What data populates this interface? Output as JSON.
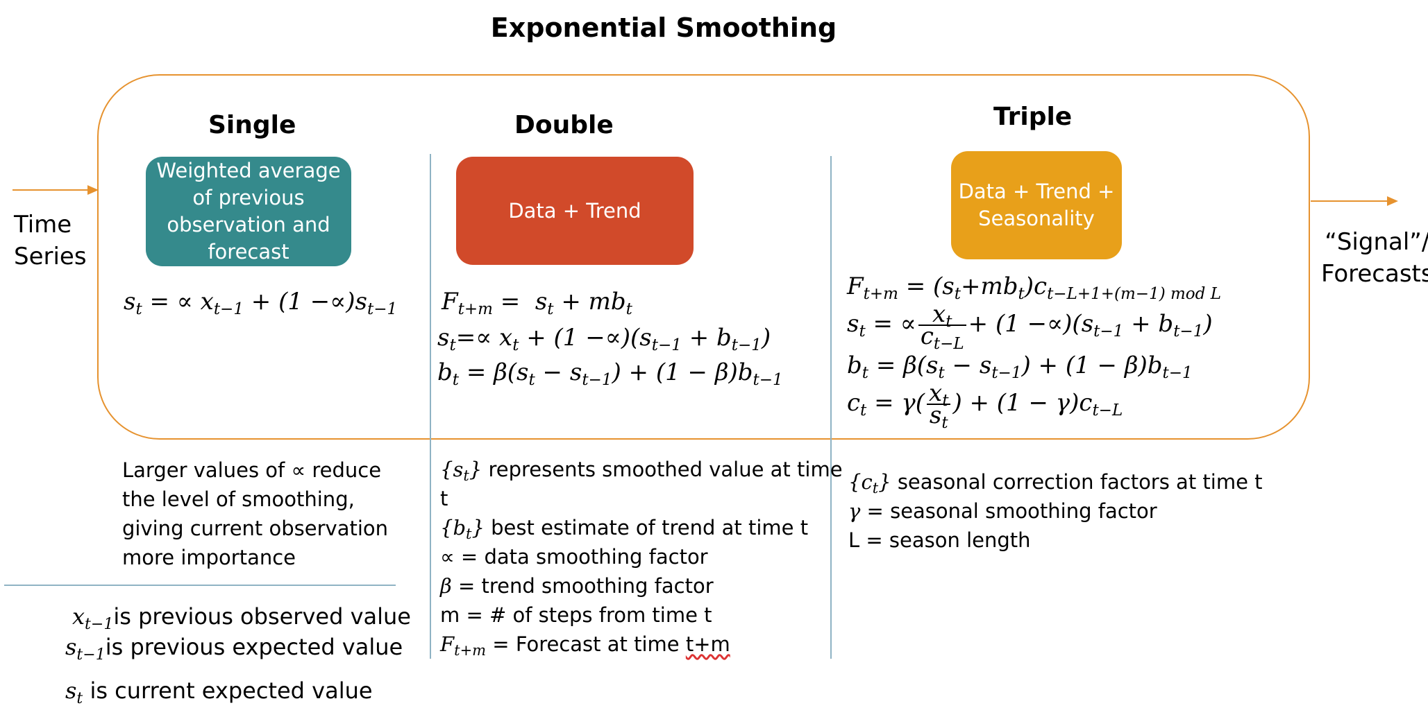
{
  "title": "Exponential Smoothing",
  "input": {
    "label_line1": "Time",
    "label_line2": "Series"
  },
  "output": {
    "label_line1": "“Signal”/",
    "label_line2": "Forecasts"
  },
  "colors": {
    "frame": "#E6922E",
    "arrow": "#E6922E",
    "single_box": "#358A8C",
    "double_box": "#D14A2A",
    "triple_box": "#E8A01A",
    "divider": "#8FB3C4"
  },
  "columns": {
    "single": {
      "heading": "Single",
      "box_lines": [
        "Weighted average",
        "of previous",
        "observation and",
        "forecast"
      ],
      "notes": [
        "Larger values of ∝ reduce",
        "the level of smoothing,",
        "giving current observation",
        "more importance"
      ]
    },
    "double": {
      "heading": "Double",
      "box_label": "Data + Trend",
      "notes": {
        "s_desc": " represents smoothed value at time",
        "s_desc_cont": "t",
        "b_desc": " best estimate of trend at time t",
        "alpha_desc": "∝ = data smoothing factor",
        "beta_desc": " = trend smoothing factor",
        "m_desc": "m = # of steps from time t",
        "f_desc": " = Forecast at time ",
        "f_desc_tail": "t+m"
      }
    },
    "triple": {
      "heading": "Triple",
      "box_lines": [
        "Data + Trend +",
        "Seasonality"
      ],
      "notes": {
        "c_desc": " seasonal correction factors at time t",
        "gamma_desc": " = seasonal smoothing factor",
        "l_desc": "L = season length"
      }
    }
  },
  "legend": {
    "x_prev": "is previous observed value",
    "s_prev": "is previous expected value",
    "s_cur": " is current expected value"
  }
}
